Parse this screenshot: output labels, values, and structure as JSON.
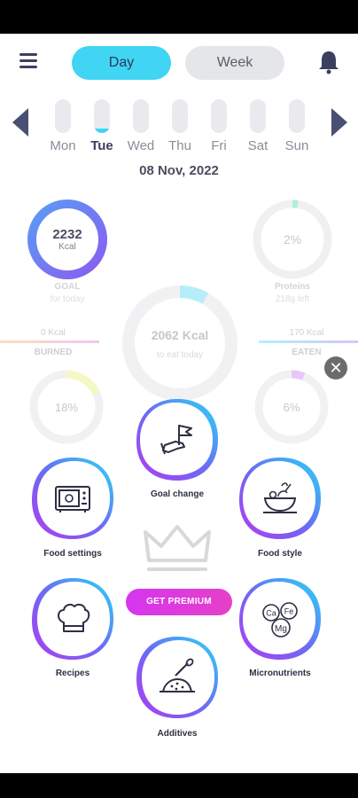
{
  "header": {
    "tabs": [
      {
        "label": "Day",
        "active": true
      },
      {
        "label": "Week",
        "active": false
      }
    ]
  },
  "days": [
    "Mon",
    "Tue",
    "Wed",
    "Thu",
    "Fri",
    "Sat",
    "Sun"
  ],
  "selected_day": "Tue",
  "date": "08 Nov, 2022",
  "goal": {
    "value": "2232",
    "unit": "Kcal",
    "label": "GOAL",
    "sublabel": "for today"
  },
  "center": {
    "value": "2062 Kcal",
    "sublabel": "to eat today"
  },
  "proteins": {
    "percent": "2%",
    "label": "Proteins",
    "sublabel": "218g  left",
    "fraction": 0.02
  },
  "burned": {
    "value": "0 Kcal",
    "label": "BURNED"
  },
  "eaten": {
    "value": "170 Kcal",
    "label": "EATEN"
  },
  "fats": {
    "percent": "18%"
  },
  "carbs": {
    "percent": "6%"
  },
  "menu_tiles": [
    {
      "label": "Goal change",
      "icon": "flag-hand-icon"
    },
    {
      "label": "Food settings",
      "icon": "microwave-icon"
    },
    {
      "label": "Food style",
      "icon": "food-bowl-icon"
    },
    {
      "label": "Recipes",
      "icon": "chef-hat-icon"
    },
    {
      "label": "Micronutrients",
      "icon": "minerals-icon"
    },
    {
      "label": "Additives",
      "icon": "spoon-powder-icon"
    }
  ],
  "micronutrient_symbols": [
    "Ca",
    "Fe",
    "Mg"
  ],
  "premium_label": "GET PREMIUM",
  "colors": {
    "accent": "#3fd5f3",
    "goal_ring": "#6a78f0",
    "premium": "#d535f0",
    "dark": "#3c3f5e"
  }
}
